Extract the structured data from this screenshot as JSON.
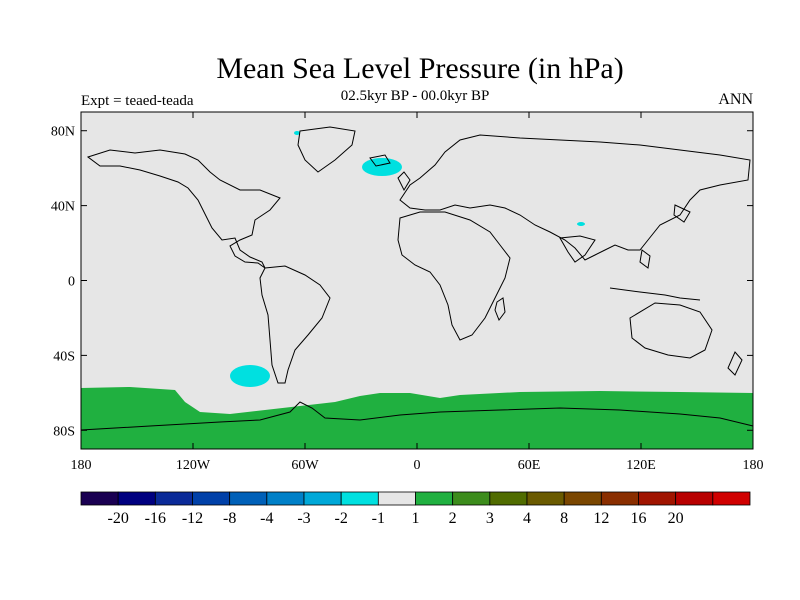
{
  "title": "Mean Sea Level Pressure (in hPa)",
  "subtitle": "02.5kyr BP - 00.0kyr BP",
  "expt_label": "Expt = teaed-teada",
  "season_label": "ANN",
  "colors": {
    "land_outline": "#000000",
    "neutral": "#e6e6e6",
    "neg_anomaly": "#00e0e0",
    "pos_anomaly": "#20b040"
  },
  "map": {
    "lon_range": [
      -180,
      180
    ],
    "lat_range": [
      -90,
      90
    ],
    "lat_ticks": [
      {
        "lat": 80,
        "label": "80N"
      },
      {
        "lat": 40,
        "label": "40N"
      },
      {
        "lat": 0,
        "label": "0"
      },
      {
        "lat": -40,
        "label": "40S"
      },
      {
        "lat": -80,
        "label": "80S"
      }
    ],
    "lon_ticks": [
      {
        "lon": -180,
        "label": "180"
      },
      {
        "lon": -120,
        "label": "120W"
      },
      {
        "lon": -60,
        "label": "60W"
      },
      {
        "lon": 0,
        "label": "0"
      },
      {
        "lon": 60,
        "label": "60E"
      },
      {
        "lon": 120,
        "label": "120E"
      },
      {
        "lon": 180,
        "label": "180"
      }
    ]
  },
  "colorbar": {
    "colors": [
      "#1a0052",
      "#000080",
      "#0a2a98",
      "#0040a8",
      "#0060b8",
      "#0080c8",
      "#00a8d8",
      "#00e0e0",
      "#e6e6e6",
      "#20b040",
      "#3c8c1c",
      "#506c00",
      "#6a5a00",
      "#7a4600",
      "#8a2e00",
      "#a01400",
      "#b80000",
      "#d00000"
    ],
    "labels": [
      "-20",
      "-16",
      "-12",
      "-8",
      "-4",
      "-3",
      "-2",
      "-1",
      "1",
      "2",
      "3",
      "4",
      "8",
      "12",
      "16",
      "20"
    ]
  }
}
